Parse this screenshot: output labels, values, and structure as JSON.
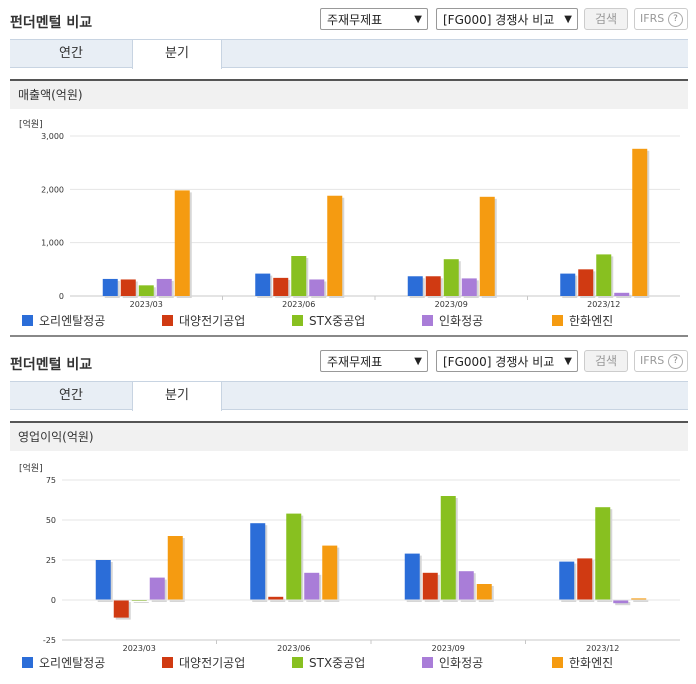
{
  "panels": [
    {
      "title": "펀더멘털 비교",
      "select1": "주재무제표",
      "select2": "[FG000] 경쟁사 비교",
      "search": "검색",
      "ifrs": "IFRS",
      "help": "?",
      "tabs": [
        "연간",
        "분기"
      ],
      "active_tab": "분기",
      "chart_title": "매출액(억원)"
    },
    {
      "title": "펀더멘털 비교",
      "select1": "주재무제표",
      "select2": "[FG000] 경쟁사 비교",
      "search": "검색",
      "ifrs": "IFRS",
      "help": "?",
      "tabs": [
        "연간",
        "분기"
      ],
      "active_tab": "분기",
      "chart_title": "영업이익(억원)"
    }
  ],
  "colors": {
    "series": [
      "#2b6dd8",
      "#d03a12",
      "#88c020",
      "#a97dd8",
      "#f59b11"
    ],
    "accent": "#e8eef5"
  },
  "chart_data": [
    {
      "type": "bar",
      "title": "매출액(억원)",
      "ylabel": "[억원]",
      "categories": [
        "2023/03",
        "2023/06",
        "2023/09",
        "2023/12"
      ],
      "ylim": [
        0,
        3000
      ],
      "yticks": [
        "0",
        "1,000",
        "2,000",
        "3,000"
      ],
      "ytick_values": [
        0,
        1000,
        2000,
        3000
      ],
      "grid": true,
      "legend": "bottom",
      "series": [
        {
          "name": "오리엔탈정공",
          "values": [
            320,
            420,
            370,
            420
          ]
        },
        {
          "name": "대양전기공업",
          "values": [
            310,
            340,
            370,
            500
          ]
        },
        {
          "name": "STX중공업",
          "values": [
            200,
            750,
            690,
            780
          ]
        },
        {
          "name": "인화정공",
          "values": [
            320,
            310,
            330,
            60
          ]
        },
        {
          "name": "한화엔진",
          "values": [
            1980,
            1880,
            1860,
            2760
          ]
        }
      ]
    },
    {
      "type": "bar",
      "title": "영업이익(억원)",
      "ylabel": "[억원]",
      "categories": [
        "2023/03",
        "2023/06",
        "2023/09",
        "2023/12"
      ],
      "ylim": [
        -25,
        75
      ],
      "yticks": [
        "-25",
        "0",
        "25",
        "50",
        "75"
      ],
      "ytick_values": [
        -25,
        0,
        25,
        50,
        75
      ],
      "grid": true,
      "legend": "bottom",
      "series": [
        {
          "name": "오리엔탈정공",
          "values": [
            25,
            48,
            29,
            24
          ]
        },
        {
          "name": "대양전기공업",
          "values": [
            -11,
            2,
            17,
            26
          ]
        },
        {
          "name": "STX중공업",
          "values": [
            0,
            54,
            65,
            58
          ]
        },
        {
          "name": "인화정공",
          "values": [
            14,
            17,
            18,
            -2
          ]
        },
        {
          "name": "한화엔진",
          "values": [
            40,
            34,
            10,
            1
          ]
        }
      ]
    }
  ]
}
